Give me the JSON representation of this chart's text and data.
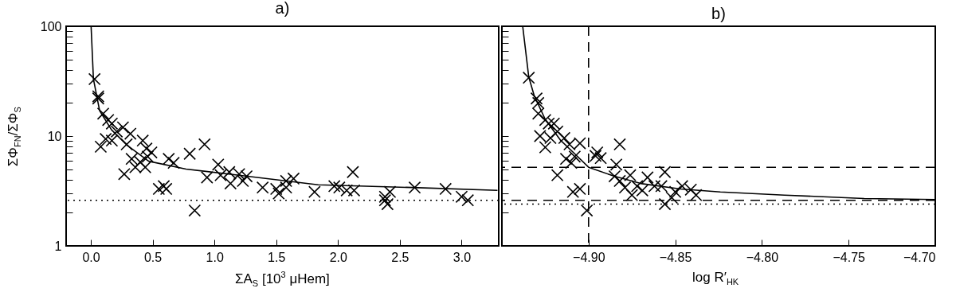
{
  "chart_data": [
    {
      "type": "scatter",
      "title": "a)",
      "xlabel": "ΣA$_{S}$ [10$^{3}$ μHem]",
      "ylabel": "ΣΦ$_{FN}$/ΣΦ$_{S}$",
      "log": "y",
      "xlim": [
        -0.2,
        3.3
      ],
      "xticks": [
        {
          "value": 0,
          "label": "0.0"
        },
        {
          "value": 0.5,
          "label": "0.5"
        },
        {
          "value": 1,
          "label": "1.0"
        },
        {
          "value": 1.5,
          "label": "1.5"
        },
        {
          "value": 2,
          "label": "2.0"
        },
        {
          "value": 2.5,
          "label": "2.5"
        },
        {
          "value": 3,
          "label": "3.0"
        }
      ],
      "ylim": [
        1,
        100
      ],
      "yticks": [
        1,
        {
          "value": 2,
          "label": null
        },
        {
          "value": 3,
          "label": null
        },
        {
          "value": 4,
          "label": null
        },
        {
          "value": 5,
          "label": null
        },
        {
          "value": 6,
          "label": null
        },
        {
          "value": 7,
          "label": null
        },
        {
          "value": 8,
          "label": null
        },
        {
          "value": 9,
          "label": null
        },
        10,
        {
          "value": 20,
          "label": null
        },
        {
          "value": 30,
          "label": null
        },
        {
          "value": 40,
          "label": null
        },
        {
          "value": 50,
          "label": null
        },
        {
          "value": 60,
          "label": null
        },
        {
          "value": 70,
          "label": null
        },
        {
          "value": 80,
          "label": null
        },
        {
          "value": 90,
          "label": null
        },
        100
      ],
      "ref_lines": [
        {
          "axis": "y",
          "value": 2.6,
          "line_style": "dotted",
          "color": "#000000"
        }
      ],
      "series": [
        {
          "type": "scatter",
          "marker": "cross",
          "color": "#000000",
          "x": [
            0.03,
            0.06,
            0.06,
            0.1,
            0.14,
            0.17,
            0.08,
            0.12,
            0.17,
            0.21,
            0.26,
            0.32,
            0.29,
            0.27,
            0.33,
            0.36,
            0.4,
            0.44,
            0.42,
            0.45,
            0.46,
            0.49,
            0.55,
            0.61,
            0.59,
            0.63,
            0.67,
            0.8,
            0.84,
            0.92,
            0.94,
            1.03,
            1.05,
            1.12,
            1.13,
            1.2,
            1.23,
            1.26,
            1.39,
            1.5,
            1.52,
            1.58,
            1.58,
            1.64,
            1.81,
            1.97,
            2.01,
            2.07,
            2.13,
            2.12,
            2.38,
            2.4,
            2.42,
            2.38,
            2.62,
            2.87,
            3.0,
            3.05
          ],
          "values": [
            33,
            23,
            22,
            16,
            14,
            13,
            8,
            9.4,
            9.1,
            11,
            12,
            10.5,
            8.4,
            4.5,
            6.2,
            5.2,
            5.8,
            5.2,
            9.1,
            7.7,
            6.5,
            7.1,
            3.3,
            3.3,
            3.5,
            6.2,
            5.7,
            6.9,
            2.1,
            8.4,
            4.2,
            5.5,
            4.4,
            4.7,
            3.7,
            4.5,
            3.9,
            4.3,
            3.4,
            3.3,
            3.0,
            3.4,
            3.9,
            4.1,
            3.1,
            3.5,
            3.4,
            3.2,
            3.2,
            4.7,
            2.8,
            2.4,
            3.1,
            2.6,
            3.4,
            3.3,
            2.8,
            2.6
          ]
        },
        {
          "type": "line",
          "color": "#000000",
          "x": [
            0.002,
            0.021,
            0.071,
            0.167,
            0.296,
            0.468,
            0.77,
            1.2,
            1.84,
            2.6,
            3.29
          ],
          "values": [
            100,
            33,
            17,
            11.4,
            8.2,
            5.9,
            5.0,
            4.4,
            3.6,
            3.4,
            3.2
          ]
        }
      ]
    },
    {
      "type": "scatter",
      "title": "b)",
      "xlabel": "log R′$_{HK}$",
      "log": "y",
      "tick_labels": "x",
      "xlim": [
        -4.95,
        -4.7
      ],
      "xticks": [
        {
          "value": -4.9,
          "label": "−4.90"
        },
        {
          "value": -4.85,
          "label": "−4.85"
        },
        {
          "value": -4.8,
          "label": "−4.80"
        },
        {
          "value": -4.75,
          "label": "−4.75"
        },
        {
          "value": -4.7,
          "label": "−4.70"
        }
      ],
      "ylim": [
        1,
        100
      ],
      "yticks": [
        1,
        {
          "value": 2,
          "label": null
        },
        {
          "value": 3,
          "label": null
        },
        {
          "value": 4,
          "label": null
        },
        {
          "value": 5,
          "label": null
        },
        {
          "value": 6,
          "label": null
        },
        {
          "value": 7,
          "label": null
        },
        {
          "value": 8,
          "label": null
        },
        {
          "value": 9,
          "label": null
        },
        10,
        {
          "value": 20,
          "label": null
        },
        {
          "value": 30,
          "label": null
        },
        {
          "value": 40,
          "label": null
        },
        {
          "value": 50,
          "label": null
        },
        {
          "value": 60,
          "label": null
        },
        {
          "value": 70,
          "label": null
        },
        {
          "value": 80,
          "label": null
        },
        {
          "value": 90,
          "label": null
        },
        100
      ],
      "ref_lines": [
        {
          "axis": "y",
          "value": 2.4,
          "line_style": "dotted",
          "color": "#000000"
        },
        {
          "axis": "y",
          "value": 5.2,
          "line_style": "dashed",
          "color": "#000000"
        },
        {
          "axis": "y",
          "value": 2.6,
          "line_style": "dashed",
          "color": "#000000"
        },
        {
          "axis": "x",
          "value": -4.9,
          "line_style": "dashed",
          "color": "#000000"
        }
      ],
      "series": [
        {
          "type": "scatter",
          "marker": "cross",
          "color": "#000000",
          "x": [
            -4.9345,
            -4.93,
            -4.929,
            -4.929,
            -4.925,
            -4.923,
            -4.92,
            -4.928,
            -4.925,
            -4.922,
            -4.918,
            -4.914,
            -4.911,
            -4.905,
            -4.913,
            -4.91,
            -4.908,
            -4.918,
            -4.909,
            -4.905,
            -4.901,
            -4.896,
            -4.895,
            -4.893,
            -4.882,
            -4.884,
            -4.885,
            -4.882,
            -4.879,
            -4.876,
            -4.875,
            -4.872,
            -4.869,
            -4.866,
            -4.862,
            -4.856,
            -4.858,
            -4.856,
            -4.852,
            -4.85,
            -4.846,
            -4.841,
            -4.838
          ],
          "values": [
            34,
            22,
            20,
            16,
            14,
            13,
            13,
            10,
            7.9,
            9.6,
            11,
            9.6,
            8.4,
            8.6,
            6.2,
            5.7,
            6.5,
            4.4,
            3.1,
            3.3,
            2.1,
            6.6,
            7.1,
            6.3,
            8.4,
            5.5,
            4.3,
            3.9,
            3.4,
            4.4,
            2.9,
            3.5,
            3.2,
            4.2,
            3.5,
            4.7,
            3.5,
            2.4,
            2.75,
            3.1,
            3.5,
            3.25,
            2.9
          ]
        },
        {
          "type": "line",
          "color": "#000000",
          "x": [
            -4.938,
            -4.9345,
            -4.9314,
            -4.925,
            -4.916,
            -4.908,
            -4.9,
            -4.885,
            -4.87,
            -4.847,
            -4.824,
            -4.787,
            -4.741,
            -4.7
          ],
          "values": [
            100,
            34.5,
            23.4,
            14.2,
            9.1,
            6.9,
            5.2,
            4.3,
            3.7,
            3.3,
            3.1,
            2.9,
            2.7,
            2.64
          ]
        }
      ]
    }
  ]
}
